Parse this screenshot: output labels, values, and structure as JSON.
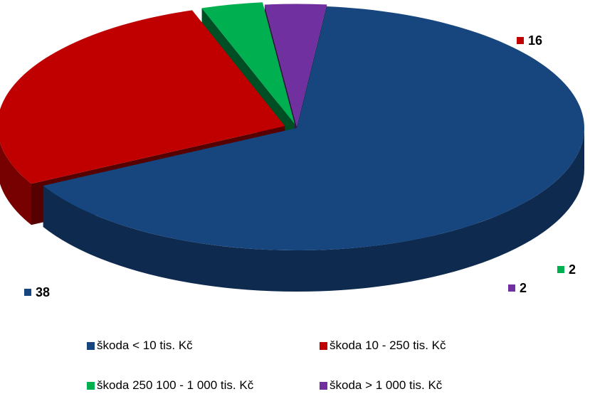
{
  "chart_data": {
    "type": "pie",
    "style": "3d-exploded",
    "series": [
      {
        "name": "",
        "slices": [
          {
            "label": "škoda < 10 tis. Kč",
            "value": 38,
            "color": "#17467f"
          },
          {
            "label": "škoda 10 - 250 tis. Kč",
            "value": 16,
            "color": "#c00000"
          },
          {
            "label": "škoda 250 100 - 1 000 tis. Kč",
            "value": 2,
            "color": "#00b050"
          },
          {
            "label": "škoda > 1 000 tis. Kč",
            "value": 2,
            "color": "#7030a0"
          }
        ]
      }
    ],
    "legend_position": "bottom",
    "data_labels": true
  }
}
